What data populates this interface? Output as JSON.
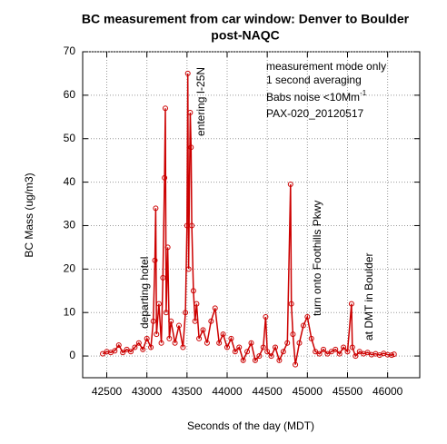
{
  "chart_data": {
    "type": "line",
    "title": "BC measurement from car window: Denver to Boulder",
    "subtitle": "post-NAQC",
    "y_label": "BC Mass (ug/m3)",
    "x_label": "Seconds of the day  (MDT)",
    "color": "#cc0000",
    "grid": true,
    "xlim": [
      42200,
      46400
    ],
    "xticks": [
      42500,
      43000,
      43500,
      44000,
      44500,
      45000,
      45500,
      46000
    ],
    "ylim": [
      -5,
      70
    ],
    "yticks": [
      0,
      10,
      20,
      30,
      40,
      50,
      60,
      70
    ],
    "notes": [
      {
        "text": "measurement mode only"
      },
      {
        "text": "1 second averaging"
      },
      {
        "text": "Babs noise <10Mm",
        "sup": "-1"
      },
      {
        "text": "PAX-020_20120517"
      }
    ],
    "annotations": [
      {
        "text": "departing hotel"
      },
      {
        "text": "entering I-25N"
      },
      {
        "text": "turn onto Foothills Pkwy"
      },
      {
        "text": "at DMT in Boulder"
      }
    ],
    "x": [
      42450,
      42500,
      42550,
      42600,
      42650,
      42700,
      42750,
      42800,
      42850,
      42900,
      42950,
      43000,
      43050,
      43080,
      43100,
      43110,
      43120,
      43150,
      43180,
      43200,
      43220,
      43230,
      43240,
      43260,
      43280,
      43300,
      43350,
      43400,
      43450,
      43480,
      43500,
      43510,
      43520,
      43540,
      43550,
      43560,
      43580,
      43600,
      43620,
      43650,
      43700,
      43750,
      43800,
      43850,
      43900,
      43950,
      44000,
      44050,
      44100,
      44150,
      44200,
      44250,
      44300,
      44350,
      44400,
      44450,
      44480,
      44500,
      44550,
      44600,
      44650,
      44700,
      44750,
      44790,
      44800,
      44820,
      44850,
      44900,
      44950,
      45000,
      45050,
      45100,
      45150,
      45200,
      45250,
      45300,
      45350,
      45400,
      45450,
      45500,
      45550,
      45560,
      45600,
      45650,
      45700,
      45750,
      45800,
      45850,
      45900,
      45950,
      46000,
      46050,
      46080
    ],
    "values": [
      0.5,
      1,
      0.8,
      1.2,
      2.5,
      0.8,
      1.5,
      1,
      2,
      3,
      1.5,
      4,
      2,
      8,
      22,
      34,
      5,
      12,
      3,
      18,
      41,
      57,
      10,
      25,
      4,
      8,
      3,
      7,
      2,
      10,
      30,
      65,
      20,
      56,
      48,
      30,
      15,
      8,
      12,
      4,
      6,
      3,
      8,
      11,
      3,
      5,
      2,
      4,
      1,
      2,
      -1,
      1,
      3,
      -1,
      0,
      2,
      9,
      1,
      0,
      2,
      -1,
      1,
      3,
      39.5,
      12,
      5,
      -2,
      3,
      7,
      9,
      4,
      1,
      0.5,
      1.5,
      0.5,
      1,
      1.5,
      0.5,
      2,
      1,
      12,
      2,
      0,
      1,
      0.5,
      0.8,
      0.3,
      0.5,
      0.2,
      0.6,
      0.3,
      0.2,
      0.4
    ]
  }
}
